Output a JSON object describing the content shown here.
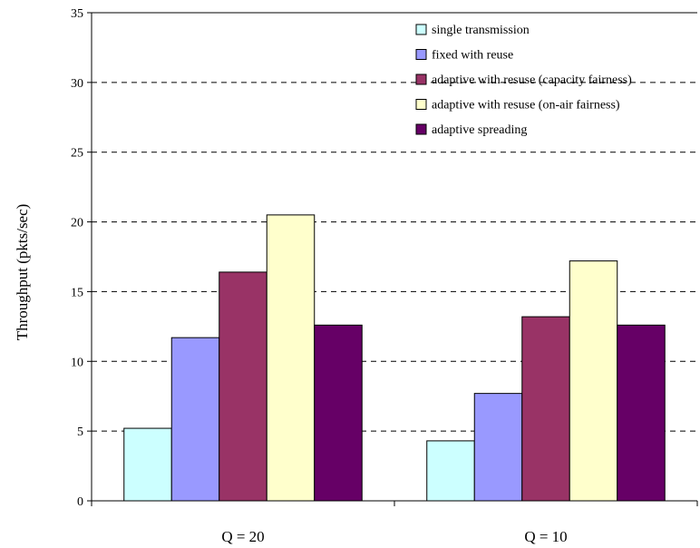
{
  "chart_data": {
    "type": "bar",
    "categories": [
      "Q = 20",
      "Q = 10"
    ],
    "ylabel": "Throughput (pkts/sec)",
    "xlabel": "",
    "ylim": [
      0,
      35
    ],
    "yticks": [
      0,
      5,
      10,
      15,
      20,
      25,
      30,
      35
    ],
    "grid": "horizontal dashed",
    "legend_position": "top-right",
    "series": [
      {
        "name": "single transmission",
        "color": "#ccffff",
        "values": [
          5.2,
          4.3
        ]
      },
      {
        "name": "fixed with reuse",
        "color": "#9999ff",
        "values": [
          11.7,
          7.7
        ]
      },
      {
        "name": "adaptive with resuse (capacity fairness)",
        "color": "#993366",
        "values": [
          16.4,
          13.2
        ]
      },
      {
        "name": "adaptive with resuse (on-air fairness)",
        "color": "#ffffcc",
        "values": [
          20.5,
          17.2
        ]
      },
      {
        "name": "adaptive spreading",
        "color": "#660066",
        "values": [
          12.6,
          12.6
        ]
      }
    ]
  }
}
